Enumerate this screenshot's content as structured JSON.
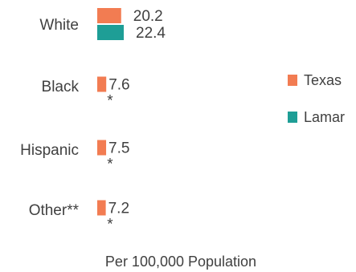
{
  "chart_data": {
    "type": "bar",
    "orientation": "horizontal",
    "categories": [
      "White",
      "Black",
      "Hispanic",
      "Other**"
    ],
    "series": [
      {
        "name": "Texas",
        "color": "#f27c52",
        "values": [
          20.2,
          7.6,
          7.5,
          7.2
        ],
        "labels": [
          "20.2",
          "7.6",
          "7.5",
          "7.2"
        ]
      },
      {
        "name": "Lamar",
        "color": "#1e9e96",
        "values": [
          22.4,
          null,
          null,
          null
        ],
        "labels": [
          "22.4",
          "*",
          "*",
          "*"
        ]
      }
    ],
    "xlabel": "Per 100,000 Population",
    "ylabel": "",
    "title": "",
    "xlim": [
      0,
      22.4
    ],
    "grid": false,
    "legend": "right"
  }
}
